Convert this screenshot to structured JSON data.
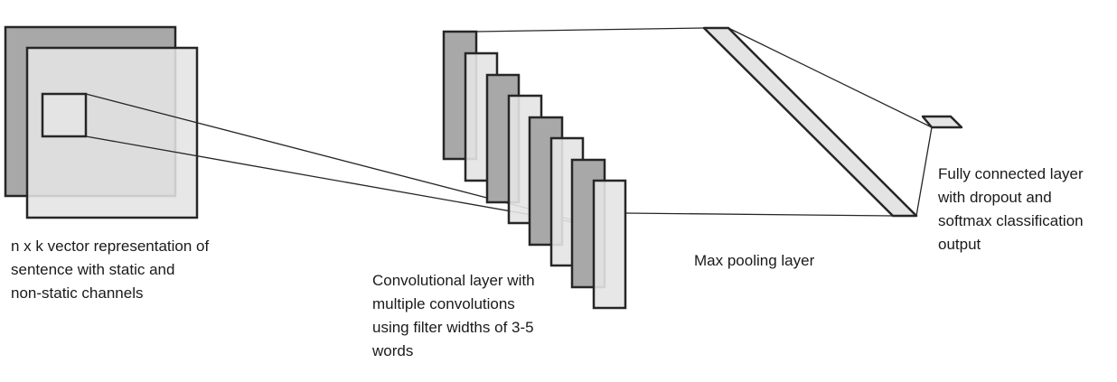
{
  "labels": {
    "input": "n x k vector representation of\nsentence with static and\nnon-static channels",
    "convolution": "Convolutional layer with\nmultiple convolutions\nusing filter widths of 3-5\nwords",
    "pooling": "Max pooling layer",
    "fully_connected": "Fully connected layer\nwith dropout and\nsoftmax classification\noutput"
  },
  "colors": {
    "stroke": "#262626",
    "fill_dark": "#a8a8a8",
    "fill_light": "#e4e4e4",
    "background": "#ffffff"
  }
}
